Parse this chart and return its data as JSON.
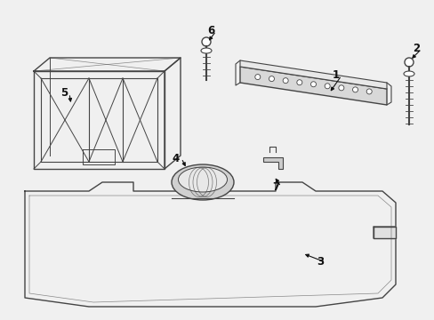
{
  "bg_color": "#f0f0f0",
  "line_color": "#444444",
  "text_color": "#111111",
  "figsize": [
    4.89,
    3.6
  ],
  "dpi": 100,
  "xlim": [
    0,
    489
  ],
  "ylim": [
    0,
    360
  ]
}
